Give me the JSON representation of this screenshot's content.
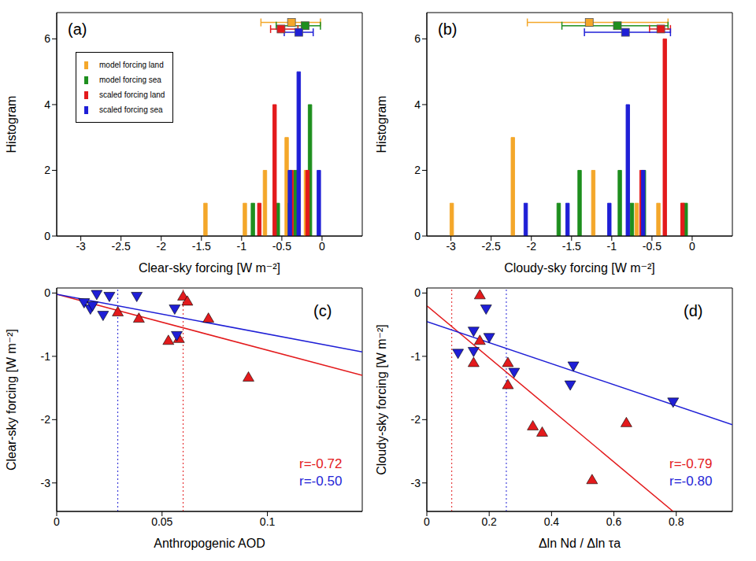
{
  "chart_data": [
    {
      "type": "bar",
      "panel": "(a)",
      "x_label": "Clear-sky forcing [W m⁻²]",
      "y_label": "Histogram",
      "xlim": [
        -3.3,
        0.5
      ],
      "xticks": [
        -3,
        -2.5,
        -2,
        -1.5,
        -1,
        -0.5,
        0
      ],
      "ylim": [
        0,
        6.8
      ],
      "yticks": [
        0,
        2,
        4,
        6
      ],
      "legend": "upper left",
      "series": [
        {
          "name": "model forcing land",
          "color": "#f4a72a",
          "x": [
            -1.45,
            -0.96,
            -0.71,
            -0.44,
            -0.2
          ],
          "values": [
            1,
            1,
            2,
            3,
            2
          ],
          "mean": -0.38,
          "range": [
            -0.76,
            -0.02
          ],
          "mean_y": 6.5
        },
        {
          "name": "model forcing sea",
          "color": "#1e8f1e",
          "x": [
            -0.86,
            -0.55,
            -0.4,
            -0.33,
            -0.15
          ],
          "values": [
            1,
            1,
            1,
            2,
            4
          ],
          "mean": -0.21,
          "range": [
            -0.57,
            -0.02
          ],
          "mean_y": 6.4
        },
        {
          "name": "scaled forcing land",
          "color": "#e31a1c",
          "x": [
            -0.78,
            -0.59,
            -0.38,
            -0.18
          ],
          "values": [
            1,
            4,
            2,
            2
          ],
          "mean": -0.51,
          "range": [
            -0.64,
            -0.3
          ],
          "mean_y": 6.3
        },
        {
          "name": "scaled forcing sea",
          "color": "#1f1fd6",
          "x": [
            -0.4,
            -0.29,
            -0.04
          ],
          "values": [
            2,
            5,
            2
          ],
          "mean": -0.29,
          "range": [
            -0.47,
            -0.11
          ],
          "mean_y": 6.2
        }
      ]
    },
    {
      "type": "bar",
      "panel": "(b)",
      "x_label": "Cloudy-sky forcing [W m⁻²]",
      "y_label": "Histogram",
      "xlim": [
        -3.3,
        0.5
      ],
      "xticks": [
        -3,
        -2.5,
        -2,
        -1.5,
        -1,
        -0.5,
        0
      ],
      "ylim": [
        0,
        6.8
      ],
      "yticks": [
        0,
        2,
        4,
        6
      ],
      "series": [
        {
          "color": "#f4a72a",
          "x": [
            -2.99,
            -2.23,
            -1.23,
            -0.69,
            -0.42,
            -0.12
          ],
          "values": [
            1,
            3,
            2,
            1,
            1,
            1
          ],
          "mean": -1.28,
          "range": [
            -2.05,
            -0.3
          ],
          "mean_y": 6.5
        },
        {
          "color": "#1e8f1e",
          "x": [
            -1.66,
            -1.4,
            -0.9,
            -0.75,
            -0.6,
            -0.08
          ],
          "values": [
            1,
            2,
            2,
            1,
            2,
            1
          ],
          "mean": -0.93,
          "range": [
            -1.62,
            -0.3
          ],
          "mean_y": 6.4
        },
        {
          "color": "#e31a1c",
          "x": [
            -0.63,
            -0.34,
            -0.12
          ],
          "values": [
            2,
            6,
            1
          ],
          "mean": -0.39,
          "range": [
            -0.53,
            -0.27
          ],
          "mean_y": 6.3
        },
        {
          "color": "#1f1fd6",
          "x": [
            -2.07,
            -1.55,
            -1.03,
            -0.8,
            -0.61
          ],
          "values": [
            1,
            1,
            1,
            4,
            2
          ],
          "mean": -0.83,
          "range": [
            -1.34,
            -0.27
          ],
          "mean_y": 6.2
        }
      ]
    },
    {
      "type": "scatter",
      "panel": "(c)",
      "x_label": "Anthropogenic AOD",
      "y_label": "Clear-sky forcing [W m⁻²]",
      "xlim": [
        0,
        0.145
      ],
      "xticks": [
        0,
        0.05,
        0.1
      ],
      "ylim": [
        -3.45,
        0.08
      ],
      "yticks": [
        -3,
        -2,
        -1,
        0
      ],
      "series": [
        {
          "color": "#e31a1c",
          "marker": "triangle-up",
          "x": [
            0.029,
            0.039,
            0.053,
            0.058,
            0.06,
            0.062,
            0.072,
            0.091
          ],
          "values": [
            -0.3,
            -0.4,
            -0.75,
            -0.72,
            -0.05,
            -0.13,
            -0.4,
            -1.33
          ],
          "fit": {
            "x": [
              0,
              0.145
            ],
            "values": [
              -0.02,
              -1.3
            ],
            "line_style": "solid"
          },
          "mean_x": 0.06,
          "mean_line_style": "dotted",
          "r_label": "r=-0.72"
        },
        {
          "color": "#1f1fd6",
          "marker": "triangle-down",
          "x": [
            0.013,
            0.016,
            0.017,
            0.019,
            0.022,
            0.025,
            0.038,
            0.056,
            0.057
          ],
          "values": [
            -0.15,
            -0.25,
            -0.2,
            -0.02,
            -0.35,
            -0.05,
            -0.05,
            -0.25,
            -0.67
          ],
          "fit": {
            "x": [
              0,
              0.145
            ],
            "values": [
              -0.02,
              -0.93
            ],
            "line_style": "solid"
          },
          "mean_x": 0.029,
          "mean_line_style": "dotted",
          "r_label": "r=-0.50"
        }
      ]
    },
    {
      "type": "scatter",
      "panel": "(d)",
      "x_label": "Δln Nd / Δln τa",
      "y_label": "Cloudy-sky forcing [W m⁻²]",
      "xlim": [
        0,
        0.98
      ],
      "xticks": [
        0,
        0.2,
        0.4,
        0.6,
        0.8
      ],
      "ylim": [
        -3.45,
        0.08
      ],
      "yticks": [
        -3,
        -2,
        -1,
        0
      ],
      "series": [
        {
          "color": "#e31a1c",
          "marker": "triangle-up",
          "x": [
            0.17,
            0.15,
            0.17,
            0.26,
            0.26,
            0.34,
            0.37,
            0.53,
            0.64
          ],
          "values": [
            -0.03,
            -1.1,
            -0.75,
            -1.1,
            -1.45,
            -2.1,
            -2.2,
            -2.95,
            -2.05
          ],
          "fit": {
            "x": [
              0,
              0.79
            ],
            "values": [
              -0.2,
              -3.45
            ],
            "line_style": "solid"
          },
          "mean_x": 0.08,
          "mean_line_style": "dotted",
          "r_label": "r=-0.79"
        },
        {
          "color": "#1f1fd6",
          "marker": "triangle-down",
          "x": [
            0.1,
            0.15,
            0.15,
            0.19,
            0.2,
            0.28,
            0.47,
            0.46,
            0.79
          ],
          "values": [
            -0.95,
            -0.92,
            -0.6,
            -0.25,
            -0.7,
            -1.25,
            -1.15,
            -1.45,
            -1.72
          ],
          "fit": {
            "x": [
              0,
              0.98
            ],
            "values": [
              -0.45,
              -2.08
            ],
            "line_style": "solid"
          },
          "mean_x": 0.255,
          "mean_line_style": "dotted",
          "r_label": "r=-0.80"
        }
      ]
    }
  ]
}
